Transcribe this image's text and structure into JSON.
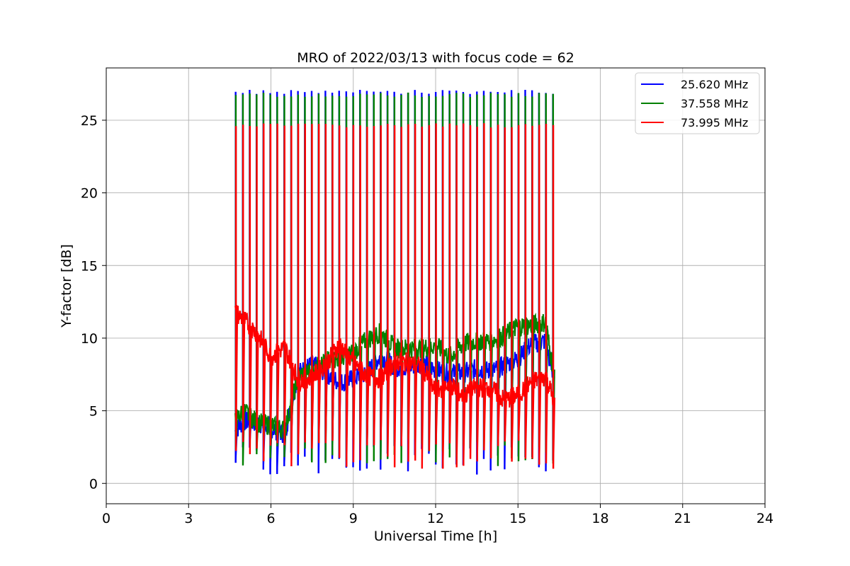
{
  "chart_data": {
    "type": "line",
    "title": "MRO of 2022/03/13 with focus code = 62",
    "xlabel": "Universal Time [h]",
    "ylabel": "Y-factor [dB]",
    "xlim": [
      0,
      24
    ],
    "ylim": [
      -1.4,
      28.6
    ],
    "xticks": [
      0,
      3,
      6,
      9,
      12,
      15,
      18,
      21,
      24
    ],
    "yticks": [
      0,
      5,
      10,
      15,
      20,
      25
    ],
    "grid": true,
    "legend_position": "top-right",
    "series": [
      {
        "name": "25.620 MHz",
        "color": "#0000ff",
        "x": [
          4.7,
          5.0,
          5.5,
          6.0,
          6.5,
          7.0,
          7.5,
          8.0,
          8.5,
          9.0,
          9.5,
          10.0,
          10.5,
          11.0,
          11.5,
          12.0,
          12.5,
          13.0,
          13.5,
          14.0,
          14.5,
          15.0,
          15.5,
          16.0,
          16.3
        ],
        "y": [
          3.6,
          4.3,
          4.2,
          3.8,
          3.4,
          7.6,
          8.2,
          7.6,
          6.9,
          7.2,
          7.6,
          8.8,
          8.0,
          8.0,
          8.3,
          7.8,
          7.6,
          7.6,
          7.9,
          7.7,
          8.1,
          8.6,
          9.6,
          9.8,
          7.2
        ],
        "spike_peak": 27.1,
        "spike_low": 0.6
      },
      {
        "name": "37.558 MHz",
        "color": "#008000",
        "x": [
          4.7,
          5.0,
          5.5,
          6.0,
          6.5,
          7.0,
          7.5,
          8.0,
          8.5,
          9.0,
          9.5,
          10.0,
          10.5,
          11.0,
          11.5,
          12.0,
          12.5,
          13.0,
          13.5,
          14.0,
          14.5,
          15.0,
          15.5,
          16.0,
          16.3
        ],
        "y": [
          4.3,
          5.0,
          4.2,
          4.0,
          3.7,
          7.4,
          7.8,
          8.4,
          8.6,
          9.0,
          9.9,
          10.4,
          9.3,
          9.3,
          9.3,
          9.5,
          8.7,
          9.6,
          9.8,
          9.8,
          10.2,
          10.8,
          10.9,
          11.1,
          7.6
        ],
        "spike_peak": 26.9,
        "spike_low": 1.2
      },
      {
        "name": "73.995 MHz",
        "color": "#ff0000",
        "x": [
          4.7,
          5.0,
          5.5,
          6.0,
          6.5,
          7.0,
          7.5,
          8.0,
          8.5,
          9.0,
          9.5,
          10.0,
          10.5,
          11.0,
          11.5,
          12.0,
          12.5,
          13.0,
          13.5,
          14.0,
          14.5,
          15.0,
          15.5,
          16.0,
          16.3
        ],
        "y": [
          11.8,
          11.3,
          10.3,
          8.7,
          9.4,
          7.1,
          7.3,
          8.2,
          9.6,
          8.3,
          7.4,
          7.2,
          8.4,
          8.3,
          8.0,
          6.3,
          6.9,
          6.0,
          6.6,
          6.6,
          5.7,
          6.1,
          7.0,
          7.4,
          5.8
        ],
        "spike_peak": 24.8,
        "spike_low": 1.0
      }
    ],
    "spike_x": [
      4.72,
      4.98,
      5.23,
      5.48,
      5.73,
      5.98,
      6.23,
      6.49,
      6.74,
      6.99,
      7.24,
      7.49,
      7.74,
      7.99,
      8.24,
      8.49,
      8.75,
      9.0,
      9.25,
      9.5,
      9.75,
      10.0,
      10.25,
      10.5,
      10.75,
      11.0,
      11.25,
      11.5,
      11.76,
      12.01,
      12.26,
      12.51,
      12.76,
      13.01,
      13.26,
      13.51,
      13.76,
      14.01,
      14.27,
      14.52,
      14.77,
      15.02,
      15.27,
      15.52,
      15.77,
      16.02,
      16.28
    ],
    "annotations": []
  }
}
